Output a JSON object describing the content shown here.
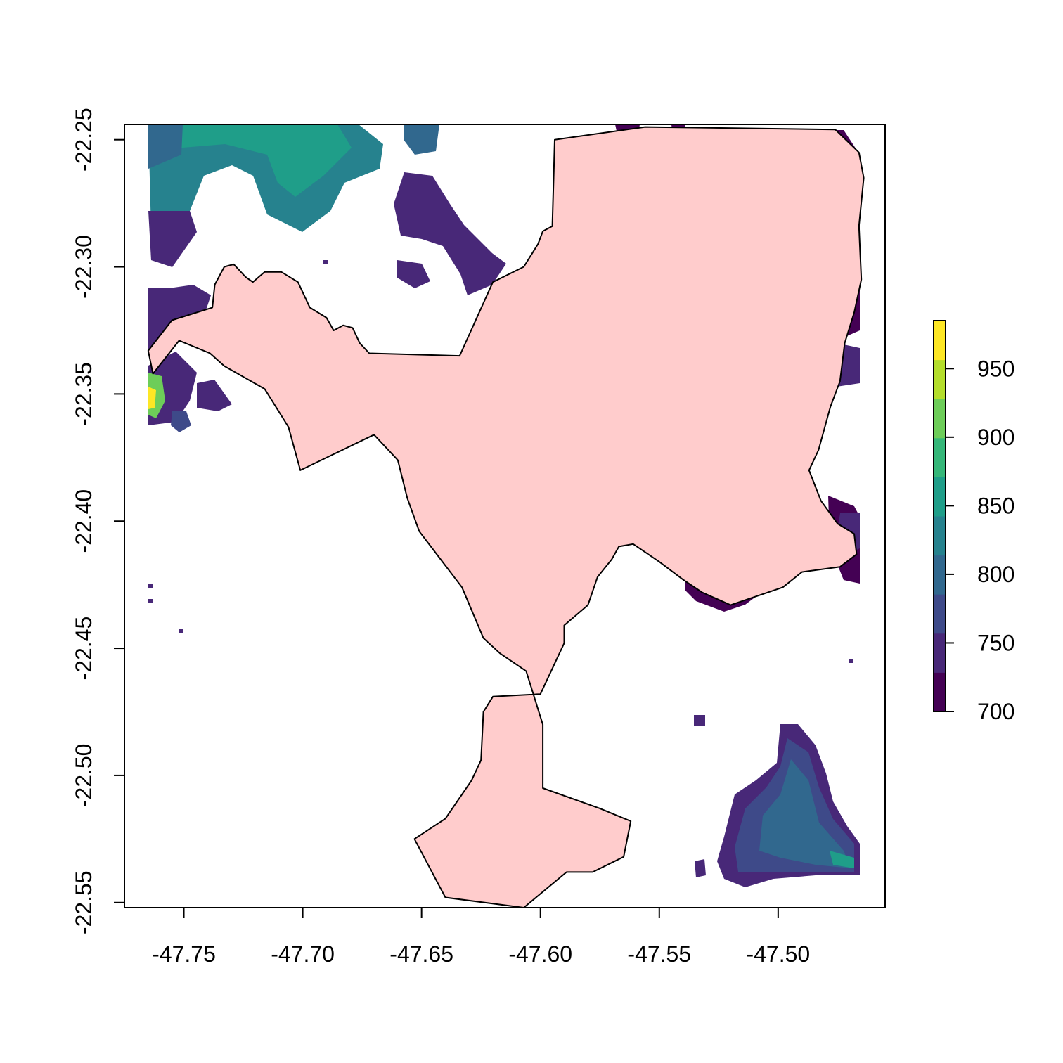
{
  "chart_data": {
    "type": "raster_map",
    "x_axis": {
      "ticks": [
        -47.75,
        -47.7,
        -47.65,
        -47.6,
        -47.55,
        -47.5
      ],
      "tick_labels": [
        "-47.75",
        "-47.70",
        "-47.65",
        "-47.60",
        "-47.55",
        "-47.50"
      ],
      "range": [
        -47.775,
        -47.455
      ]
    },
    "y_axis": {
      "ticks": [
        -22.25,
        -22.3,
        -22.35,
        -22.4,
        -22.45,
        -22.5,
        -22.55
      ],
      "tick_labels": [
        "-22.25",
        "-22.30",
        "-22.35",
        "-22.40",
        "-22.45",
        "-22.50",
        "-22.55"
      ],
      "range": [
        -22.552,
        -22.244
      ]
    },
    "polygon": {
      "fill": "#FFCCCC",
      "stroke": "#000000",
      "coords": [
        [
          -47.765,
          -22.333
        ],
        [
          -47.755,
          -22.321
        ],
        [
          -47.738,
          -22.316
        ],
        [
          -47.737,
          -22.307
        ],
        [
          -47.733,
          -22.3
        ],
        [
          -47.729,
          -22.299
        ],
        [
          -47.724,
          -22.304
        ],
        [
          -47.721,
          -22.306
        ],
        [
          -47.716,
          -22.302
        ],
        [
          -47.709,
          -22.302
        ],
        [
          -47.702,
          -22.306
        ],
        [
          -47.697,
          -22.316
        ],
        [
          -47.69,
          -22.32
        ],
        [
          -47.687,
          -22.325
        ],
        [
          -47.683,
          -22.323
        ],
        [
          -47.679,
          -22.324
        ],
        [
          -47.676,
          -22.33
        ],
        [
          -47.672,
          -22.334
        ],
        [
          -47.634,
          -22.335
        ],
        [
          -47.62,
          -22.306
        ],
        [
          -47.607,
          -22.3
        ],
        [
          -47.601,
          -22.291
        ],
        [
          -47.599,
          -22.286
        ],
        [
          -47.595,
          -22.284
        ],
        [
          -47.594,
          -22.25
        ],
        [
          -47.556,
          -22.245
        ],
        [
          -47.476,
          -22.246
        ],
        [
          -47.466,
          -22.255
        ],
        [
          -47.464,
          -22.265
        ],
        [
          -47.466,
          -22.284
        ],
        [
          -47.465,
          -22.305
        ],
        [
          -47.468,
          -22.318
        ],
        [
          -47.472,
          -22.33
        ],
        [
          -47.474,
          -22.345
        ],
        [
          -47.478,
          -22.355
        ],
        [
          -47.483,
          -22.372
        ],
        [
          -47.487,
          -22.38
        ],
        [
          -47.482,
          -22.392
        ],
        [
          -47.475,
          -22.401
        ],
        [
          -47.468,
          -22.405
        ],
        [
          -47.467,
          -22.413
        ],
        [
          -47.474,
          -22.418
        ],
        [
          -47.49,
          -22.42
        ],
        [
          -47.498,
          -22.426
        ],
        [
          -47.52,
          -22.433
        ],
        [
          -47.532,
          -22.428
        ],
        [
          -47.54,
          -22.423
        ],
        [
          -47.55,
          -22.416
        ],
        [
          -47.561,
          -22.409
        ],
        [
          -47.567,
          -22.41
        ],
        [
          -47.57,
          -22.415
        ],
        [
          -47.576,
          -22.422
        ],
        [
          -47.58,
          -22.433
        ],
        [
          -47.59,
          -22.441
        ],
        [
          -47.59,
          -22.448
        ],
        [
          -47.6,
          -22.468
        ],
        [
          -47.62,
          -22.469
        ],
        [
          -47.624,
          -22.475
        ],
        [
          -47.625,
          -22.494
        ],
        [
          -47.629,
          -22.502
        ],
        [
          -47.64,
          -22.517
        ],
        [
          -47.653,
          -22.525
        ],
        [
          -47.64,
          -22.548
        ],
        [
          -47.607,
          -22.552
        ],
        [
          -47.589,
          -22.538
        ],
        [
          -47.578,
          -22.538
        ],
        [
          -47.565,
          -22.532
        ],
        [
          -47.562,
          -22.518
        ],
        [
          -47.575,
          -22.513
        ],
        [
          -47.599,
          -22.505
        ],
        [
          -47.599,
          -22.48
        ],
        [
          -47.606,
          -22.459
        ],
        [
          -47.617,
          -22.452
        ],
        [
          -47.624,
          -22.446
        ],
        [
          -47.633,
          -22.426
        ],
        [
          -47.651,
          -22.404
        ],
        [
          -47.656,
          -22.391
        ],
        [
          -47.66,
          -22.376
        ],
        [
          -47.67,
          -22.366
        ],
        [
          -47.701,
          -22.38
        ],
        [
          -47.706,
          -22.363
        ],
        [
          -47.716,
          -22.348
        ],
        [
          -47.733,
          -22.339
        ],
        [
          -47.739,
          -22.334
        ],
        [
          -47.752,
          -22.329
        ],
        [
          -47.763,
          -22.342
        ]
      ]
    },
    "colorbar": {
      "ticks": [
        700,
        750,
        800,
        850,
        900,
        950
      ],
      "tick_labels": [
        "700",
        "750",
        "800",
        "850",
        "900",
        "950"
      ],
      "range": [
        700,
        985
      ],
      "colors": [
        "#440154",
        "#482878",
        "#3E4A89",
        "#31688E",
        "#26828E",
        "#1F9E89",
        "#35B779",
        "#6DCD59",
        "#B4DE2C",
        "#FDE725"
      ]
    }
  }
}
